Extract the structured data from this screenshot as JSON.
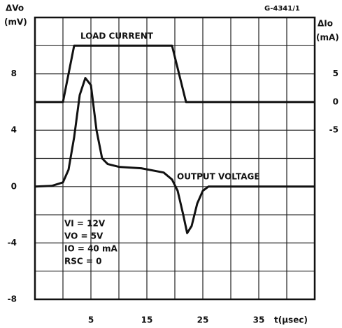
{
  "chart_data": {
    "type": "line",
    "code": "G-4341/1",
    "ylabel": "ΔVo",
    "yunit": "(mV)",
    "y2label": "ΔIo",
    "y2unit": "(mA)",
    "xlabel": "t(µsec)",
    "xlim": [
      -5,
      45
    ],
    "xticks": [
      5,
      15,
      25,
      35
    ],
    "xgrid": [
      0,
      10,
      20,
      30,
      40
    ],
    "ylim": [
      -8,
      12
    ],
    "yticks": [
      -8,
      -4,
      0,
      4,
      8
    ],
    "ygrid": [
      -6,
      -2,
      2,
      6,
      10
    ],
    "y2lim": [
      -35,
      15
    ],
    "y2ticks": [
      -5,
      0,
      5
    ],
    "grid": true,
    "series": [
      {
        "name": "LOAD CURRENT",
        "color": "#111111",
        "axis": "y2",
        "x": [
          -5,
          0,
          2,
          19.5,
          22,
          45
        ],
        "values": [
          0,
          0,
          10,
          10,
          0,
          0
        ]
      },
      {
        "name": "OUTPUT VOLTAGE",
        "color": "#111111",
        "x": [
          -5,
          -2,
          0,
          1,
          2,
          3,
          4,
          5,
          6,
          7,
          8,
          10,
          14,
          18,
          19.5,
          20.5,
          21.5,
          22.2,
          23,
          24,
          25,
          26,
          45
        ],
        "values": [
          0,
          0.05,
          0.3,
          1.2,
          3.5,
          6.5,
          7.7,
          7.2,
          4,
          2,
          1.6,
          1.4,
          1.3,
          1.0,
          0.5,
          -0.3,
          -2,
          -3.3,
          -2.8,
          -1.2,
          -0.3,
          0,
          0
        ]
      }
    ],
    "conditions": [
      "VI = 12V",
      "VO = 5V",
      "IO = 40 mA",
      "RSC = 0"
    ]
  }
}
